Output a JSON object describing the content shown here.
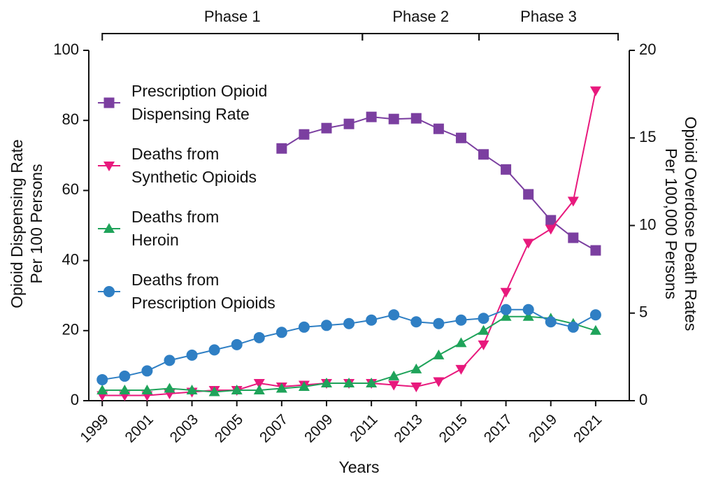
{
  "chart_data": {
    "type": "line",
    "xlabel": "Years",
    "ylabel": "Opioid Dispensing Rate\nPer 100 Persons",
    "y2label": "Opioid Overdose Death Rates\nPer 100,000 Persons",
    "x": [
      1999,
      2000,
      2001,
      2002,
      2003,
      2004,
      2005,
      2006,
      2007,
      2008,
      2009,
      2010,
      2011,
      2012,
      2013,
      2014,
      2015,
      2016,
      2017,
      2018,
      2019,
      2020,
      2021
    ],
    "xlim": [
      1998.4,
      2022.5
    ],
    "xticks": [
      1999,
      2001,
      2003,
      2005,
      2007,
      2009,
      2011,
      2013,
      2015,
      2017,
      2019,
      2021
    ],
    "ylim": [
      0,
      100
    ],
    "yticks": [
      0,
      20,
      40,
      60,
      80,
      100
    ],
    "y2lim": [
      0,
      20
    ],
    "y2ticks": [
      0,
      5,
      10,
      15,
      20
    ],
    "phases": [
      {
        "label": "Phase 1",
        "start": 1999,
        "end": 2010.6
      },
      {
        "label": "Phase 2",
        "start": 2010.6,
        "end": 2015.8
      },
      {
        "label": "Phase 3",
        "start": 2015.8,
        "end": 2022.0
      }
    ],
    "series": [
      {
        "name": "Prescription Opioid\nDispensing Rate",
        "color": "#7b3fa0",
        "marker": "square",
        "values": [
          null,
          null,
          null,
          null,
          null,
          null,
          null,
          null,
          72,
          76,
          77.8,
          79,
          81,
          80.4,
          80.6,
          77.6,
          75,
          70.3,
          66,
          58.9,
          51.5,
          46.5,
          42.9
        ]
      },
      {
        "name": "Deaths from\nSynthetic Opioids",
        "color": "#e8197d",
        "marker": "triangle-down",
        "axis": "y2",
        "values": [
          0.3,
          0.3,
          0.3,
          0.4,
          0.5,
          0.6,
          0.6,
          1.0,
          0.8,
          0.9,
          1.0,
          1.0,
          1.0,
          0.9,
          0.8,
          1.1,
          1.8,
          3.2,
          6.2,
          9.0,
          9.8,
          11.4,
          17.7
        ]
      },
      {
        "name": "Deaths from\nHeroin",
        "color": "#1fa35a",
        "marker": "triangle-up",
        "axis": "y2",
        "values": [
          0.6,
          0.6,
          0.6,
          0.7,
          0.6,
          0.5,
          0.6,
          0.6,
          0.7,
          0.8,
          1.0,
          1.0,
          1.0,
          1.4,
          1.8,
          2.6,
          3.3,
          4.0,
          4.8,
          4.8,
          4.7,
          4.4,
          4.0
        ]
      },
      {
        "name": "Deaths from\nPrescription Opioids",
        "color": "#2f7fc4",
        "marker": "circle",
        "axis": "y2",
        "values": [
          1.2,
          1.4,
          1.7,
          2.3,
          2.6,
          2.9,
          3.2,
          3.6,
          3.9,
          4.2,
          4.3,
          4.4,
          4.6,
          4.9,
          4.5,
          4.4,
          4.6,
          4.7,
          5.2,
          5.2,
          4.5,
          4.2,
          4.9
        ]
      }
    ]
  }
}
